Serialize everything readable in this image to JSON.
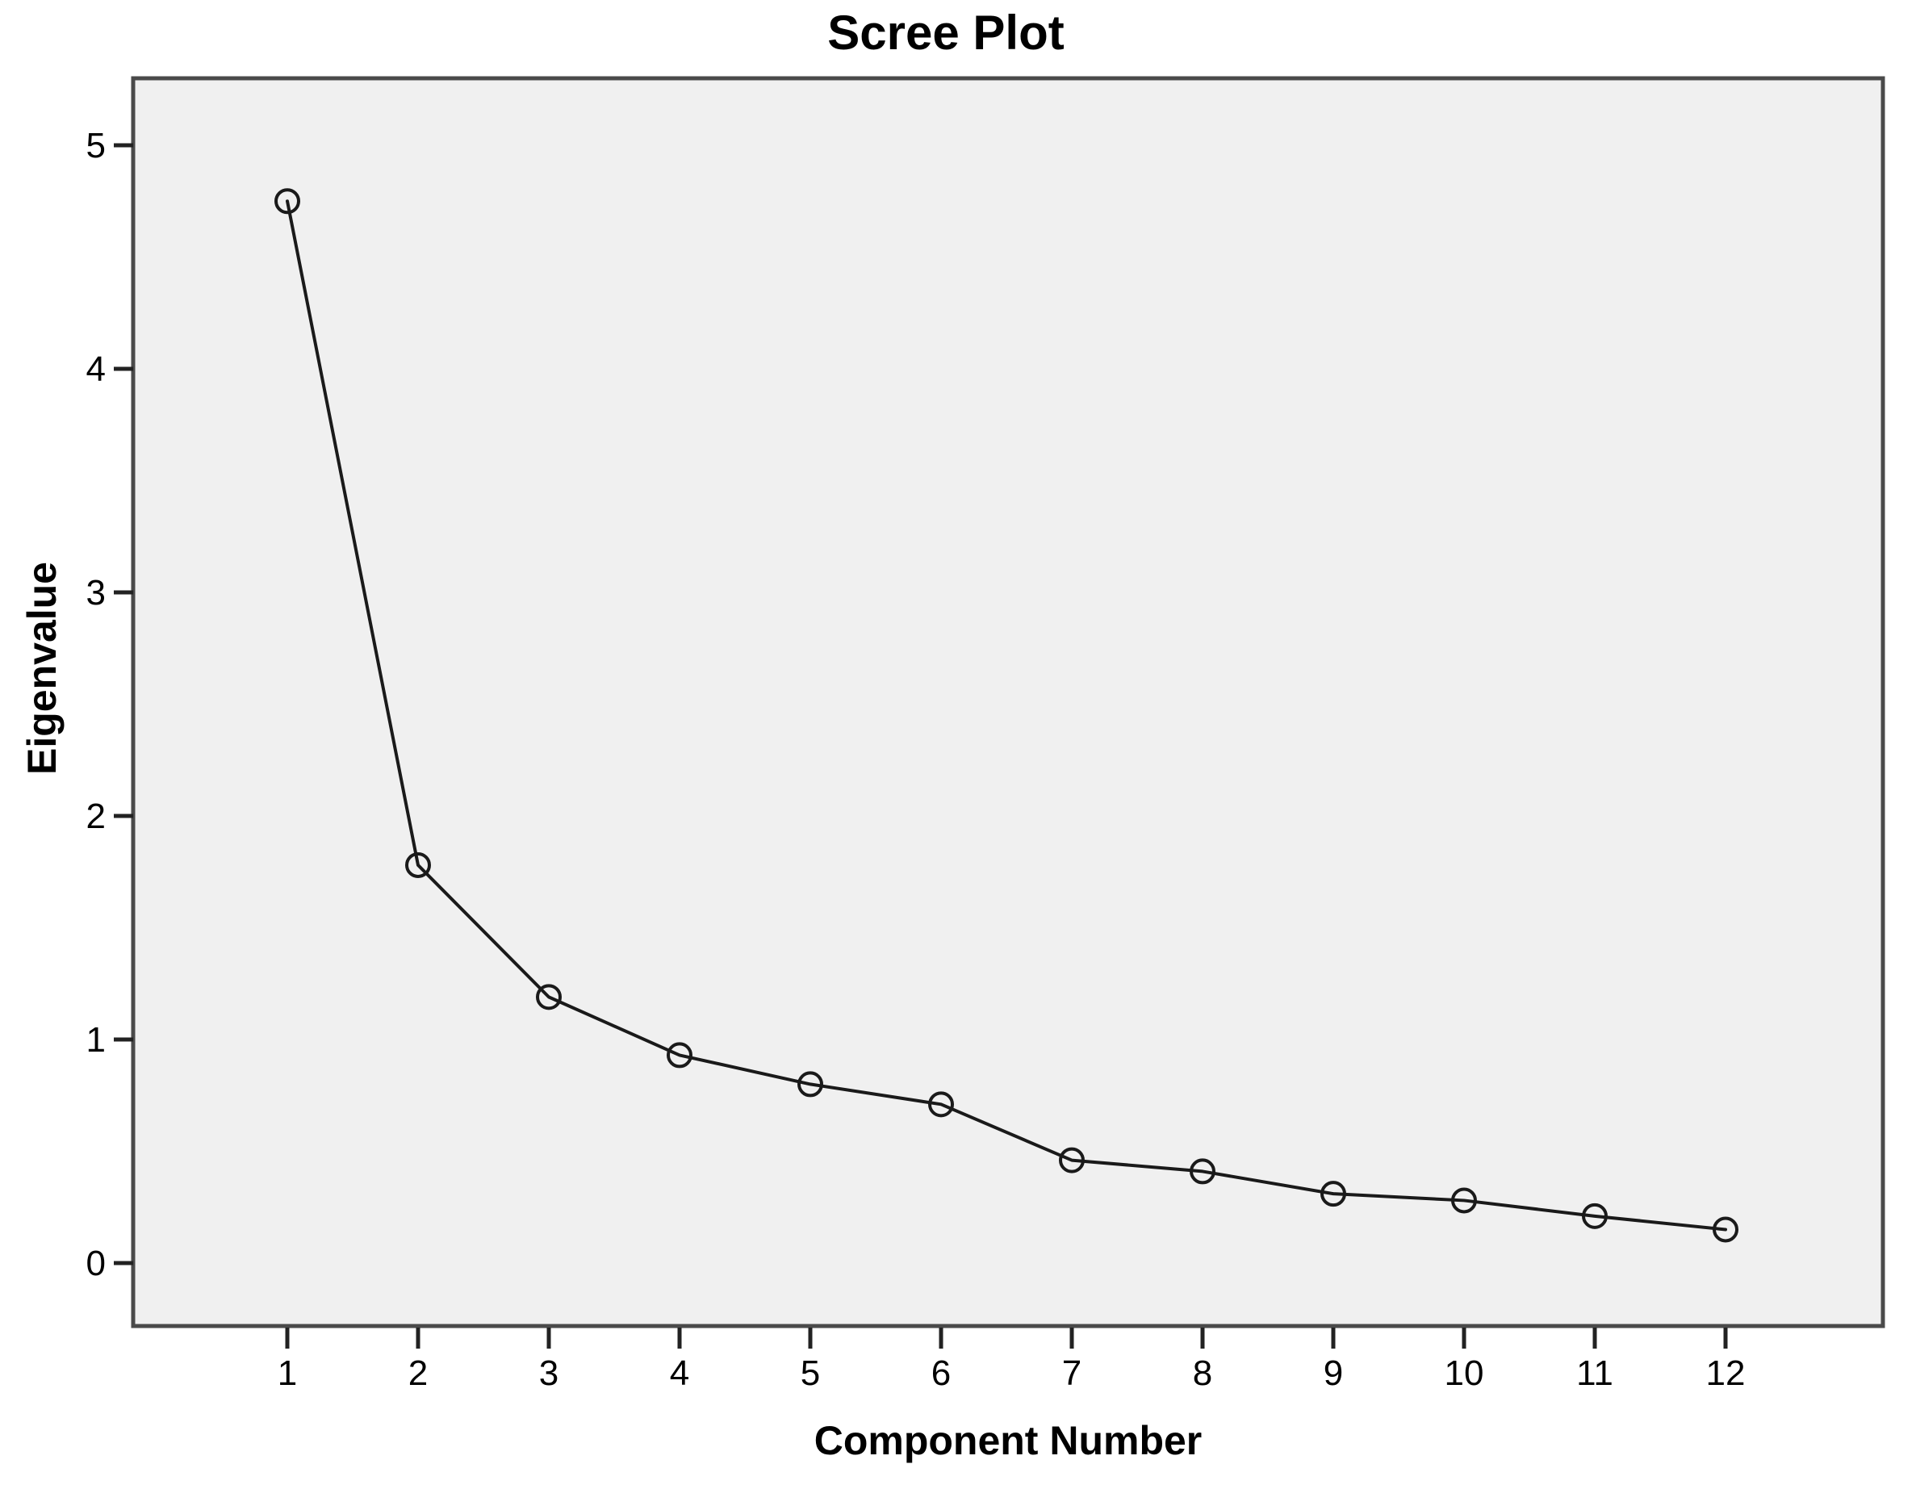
{
  "chart_data": {
    "type": "line",
    "title": "Scree Plot",
    "xlabel": "Component Number",
    "ylabel": "Eigenvalue",
    "categories": [
      1,
      2,
      3,
      4,
      5,
      6,
      7,
      8,
      9,
      10,
      11,
      12
    ],
    "series": [
      {
        "name": "Eigenvalue",
        "values": [
          4.75,
          1.78,
          1.19,
          0.93,
          0.8,
          0.71,
          0.46,
          0.41,
          0.31,
          0.28,
          0.21,
          0.15
        ]
      }
    ],
    "x_tick_labels": [
      "1",
      "2",
      "3",
      "4",
      "5",
      "6",
      "7",
      "8",
      "9",
      "10",
      "11",
      "12"
    ],
    "y_tick_labels": [
      "0",
      "1",
      "2",
      "3",
      "4",
      "5"
    ],
    "y_tick_values": [
      0,
      1,
      2,
      3,
      4,
      5
    ],
    "ylim": [
      -0.28,
      5.3
    ],
    "xlim": [
      -0.17,
      13.2
    ],
    "grid": false,
    "legend_position": "none",
    "marker": "open-circle",
    "colors": {
      "line": "#1a1a1a",
      "marker_stroke": "#1a1a1a",
      "plot_background": "#f0f0f0",
      "frame": "#4a4a4a",
      "tick": "#222222",
      "text": "#000000",
      "page_background": "#ffffff"
    }
  }
}
